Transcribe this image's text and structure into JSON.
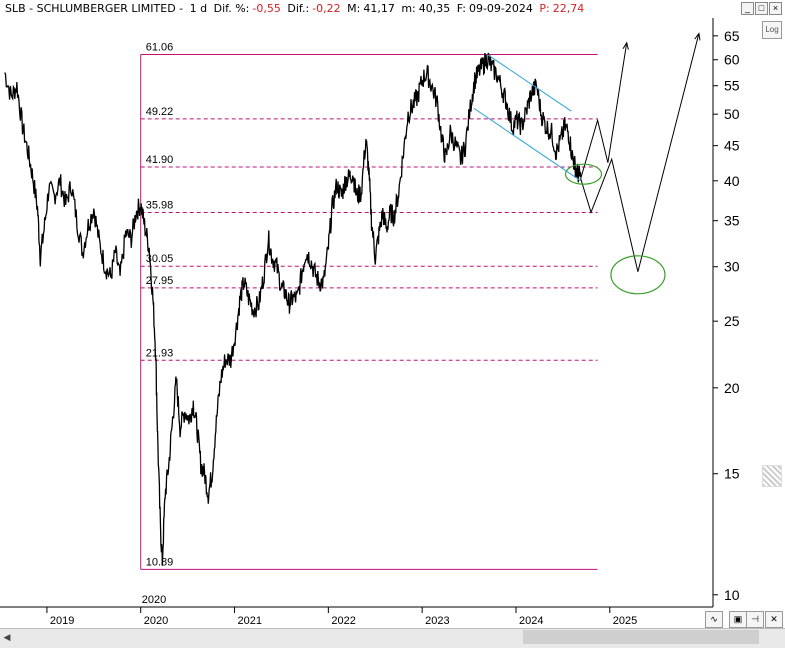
{
  "header": {
    "symbol_name": "SLB - SCHLUMBERGER LIMITED -",
    "period": "1 d",
    "dif_pct_label": "Dif. %:",
    "dif_pct_value": "-0,55",
    "dif_label": "Dif.:",
    "dif_value": "-0,22",
    "max_label": "M:",
    "max_value": "41,17",
    "min_label": "m:",
    "min_value": "40,35",
    "date_label": "F:",
    "date_value": "09-09-2024",
    "p_label": "P:",
    "p_value": "22,74"
  },
  "window_buttons": {
    "minimize": "_",
    "restore": "□",
    "close": "×"
  },
  "log_button": "Log",
  "colors": {
    "price_line": "#000000",
    "fib_lines": "#c0107a",
    "channel": "#29a3d6",
    "target_circles": "#3a9e2a",
    "neg_value": "#d62020"
  },
  "chart_data": {
    "type": "line",
    "title": "",
    "scale": "log",
    "ylim": [
      9.6,
      69
    ],
    "y_ticks": [
      65,
      60,
      55,
      50,
      45,
      40,
      35,
      30,
      25,
      20,
      15,
      10
    ],
    "x_ticks": [
      "2019",
      "2020",
      "2021",
      "2022",
      "2023",
      "2024",
      "2025"
    ],
    "xlim": [
      2018.5,
      2026.1
    ],
    "extra_x_label": {
      "x": 2020.0,
      "text": "2020"
    },
    "price_series": {
      "name": "SLB",
      "points": [
        [
          2018.55,
          57.5
        ],
        [
          2018.62,
          53.0
        ],
        [
          2018.68,
          55.0
        ],
        [
          2018.74,
          48.0
        ],
        [
          2018.8,
          44.0
        ],
        [
          2018.85,
          40.5
        ],
        [
          2018.9,
          36.5
        ],
        [
          2018.93,
          31.0
        ],
        [
          2018.97,
          34.0
        ],
        [
          2019.02,
          39.0
        ],
        [
          2019.08,
          38.0
        ],
        [
          2019.14,
          40.0
        ],
        [
          2019.2,
          37.0
        ],
        [
          2019.26,
          39.5
        ],
        [
          2019.32,
          35.0
        ],
        [
          2019.38,
          31.5
        ],
        [
          2019.44,
          34.5
        ],
        [
          2019.5,
          36.5
        ],
        [
          2019.56,
          32.5
        ],
        [
          2019.62,
          30.0
        ],
        [
          2019.68,
          29.0
        ],
        [
          2019.73,
          31.5
        ],
        [
          2019.78,
          29.0
        ],
        [
          2019.84,
          33.5
        ],
        [
          2019.9,
          33.0
        ],
        [
          2019.95,
          36.0
        ],
        [
          2020.0,
          37.0
        ],
        [
          2020.04,
          34.5
        ],
        [
          2020.09,
          32.0
        ],
        [
          2020.13,
          27.0
        ],
        [
          2020.16,
          22.5
        ],
        [
          2020.18,
          17.0
        ],
        [
          2020.21,
          12.5
        ],
        [
          2020.23,
          11.2
        ],
        [
          2020.26,
          14.0
        ],
        [
          2020.3,
          15.5
        ],
        [
          2020.34,
          18.0
        ],
        [
          2020.38,
          20.5
        ],
        [
          2020.42,
          17.5
        ],
        [
          2020.47,
          18.5
        ],
        [
          2020.52,
          18.0
        ],
        [
          2020.56,
          19.0
        ],
        [
          2020.6,
          17.5
        ],
        [
          2020.64,
          15.5
        ],
        [
          2020.68,
          15.0
        ],
        [
          2020.72,
          14.0
        ],
        [
          2020.76,
          15.0
        ],
        [
          2020.8,
          17.5
        ],
        [
          2020.85,
          20.5
        ],
        [
          2020.9,
          22.0
        ],
        [
          2020.96,
          22.0
        ],
        [
          2021.02,
          24.5
        ],
        [
          2021.06,
          27.0
        ],
        [
          2021.1,
          28.5
        ],
        [
          2021.15,
          27.0
        ],
        [
          2021.2,
          26.0
        ],
        [
          2021.26,
          26.5
        ],
        [
          2021.31,
          29.0
        ],
        [
          2021.36,
          33.0
        ],
        [
          2021.4,
          31.0
        ],
        [
          2021.45,
          30.0
        ],
        [
          2021.5,
          28.0
        ],
        [
          2021.54,
          27.5
        ],
        [
          2021.58,
          26.5
        ],
        [
          2021.62,
          27.0
        ],
        [
          2021.67,
          27.0
        ],
        [
          2021.72,
          29.5
        ],
        [
          2021.76,
          31.5
        ],
        [
          2021.8,
          31.0
        ],
        [
          2021.85,
          29.5
        ],
        [
          2021.9,
          28.5
        ],
        [
          2021.95,
          28.5
        ],
        [
          2022.0,
          32.0
        ],
        [
          2022.04,
          36.5
        ],
        [
          2022.09,
          39.5
        ],
        [
          2022.14,
          38.0
        ],
        [
          2022.18,
          40.0
        ],
        [
          2022.22,
          40.5
        ],
        [
          2022.26,
          41.0
        ],
        [
          2022.3,
          38.0
        ],
        [
          2022.35,
          38.5
        ],
        [
          2022.4,
          46.0
        ],
        [
          2022.43,
          41.5
        ],
        [
          2022.46,
          35.0
        ],
        [
          2022.5,
          31.0
        ],
        [
          2022.54,
          33.5
        ],
        [
          2022.58,
          36.0
        ],
        [
          2022.62,
          34.0
        ],
        [
          2022.66,
          36.0
        ],
        [
          2022.7,
          35.5
        ],
        [
          2022.75,
          38.5
        ],
        [
          2022.8,
          44.0
        ],
        [
          2022.85,
          50.0
        ],
        [
          2022.9,
          51.5
        ],
        [
          2022.95,
          53.0
        ],
        [
          2023.0,
          56.0
        ],
        [
          2023.05,
          57.5
        ],
        [
          2023.1,
          55.0
        ],
        [
          2023.16,
          52.0
        ],
        [
          2023.21,
          46.0
        ],
        [
          2023.25,
          43.0
        ],
        [
          2023.3,
          47.0
        ],
        [
          2023.36,
          45.0
        ],
        [
          2023.41,
          43.0
        ],
        [
          2023.46,
          45.0
        ],
        [
          2023.52,
          52.0
        ],
        [
          2023.56,
          56.0
        ],
        [
          2023.6,
          57.5
        ],
        [
          2023.65,
          59.0
        ],
        [
          2023.7,
          60.5
        ],
        [
          2023.74,
          58.5
        ],
        [
          2023.8,
          57.0
        ],
        [
          2023.86,
          54.0
        ],
        [
          2023.9,
          52.0
        ],
        [
          2023.96,
          48.0
        ],
        [
          2024.01,
          49.0
        ],
        [
          2024.06,
          48.0
        ],
        [
          2024.11,
          50.5
        ],
        [
          2024.16,
          53.5
        ],
        [
          2024.22,
          55.0
        ],
        [
          2024.27,
          50.0
        ],
        [
          2024.32,
          48.0
        ],
        [
          2024.38,
          47.0
        ],
        [
          2024.43,
          44.0
        ],
        [
          2024.48,
          46.0
        ],
        [
          2024.52,
          48.0
        ],
        [
          2024.56,
          47.0
        ],
        [
          2024.6,
          43.5
        ],
        [
          2024.63,
          42.0
        ],
        [
          2024.66,
          41.0
        ],
        [
          2024.69,
          40.5
        ]
      ]
    },
    "fib_levels": [
      {
        "value": 61.06,
        "label": "61.06",
        "style": "solid"
      },
      {
        "value": 49.22,
        "label": "49.22",
        "style": "dashed"
      },
      {
        "value": 41.9,
        "label": "41.90",
        "style": "dashed"
      },
      {
        "value": 35.98,
        "label": "35.98",
        "style": "dashed"
      },
      {
        "value": 30.05,
        "label": "30.05",
        "style": "dashed"
      },
      {
        "value": 27.95,
        "label": "27.95",
        "style": "dashed"
      },
      {
        "value": 21.93,
        "label": "21.93",
        "style": "dashed"
      },
      {
        "value": 10.89,
        "label": "10.89",
        "style": "solid"
      }
    ],
    "fib_range": {
      "x_start": 2020.0,
      "x_end": 2024.87
    },
    "channel_lines": [
      {
        "from": [
          2023.7,
          61.0
        ],
        "to": [
          2024.59,
          50.5
        ]
      },
      {
        "from": [
          2023.55,
          51.0
        ],
        "to": [
          2024.69,
          40.0
        ]
      }
    ],
    "projection_path_1": [
      [
        2024.69,
        40.3
      ],
      [
        2024.87,
        49.0
      ],
      [
        2024.98,
        42.5
      ],
      [
        2025.18,
        63.5
      ]
    ],
    "projection_path_2": [
      [
        2024.69,
        40.3
      ],
      [
        2024.8,
        36.0
      ],
      [
        2025.02,
        43.0
      ],
      [
        2025.3,
        29.5
      ],
      [
        2025.95,
        65.5
      ]
    ],
    "circles": [
      {
        "x": 2024.72,
        "y": 40.9
      },
      {
        "x": 2025.3,
        "y": 29.2
      }
    ]
  }
}
